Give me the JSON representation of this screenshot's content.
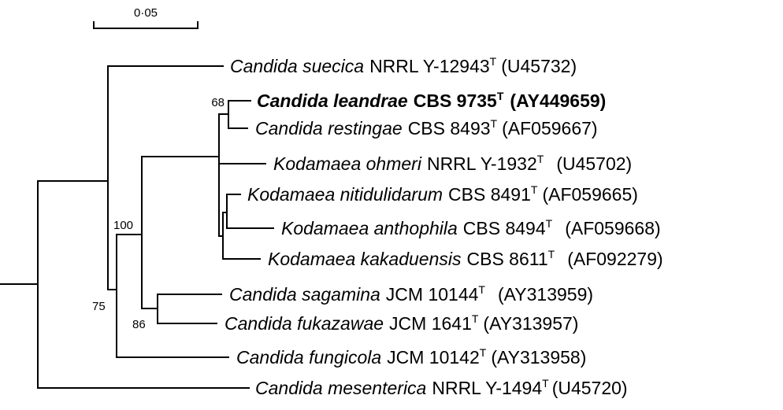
{
  "scale_bar": {
    "label": "0·05",
    "value": 0.05
  },
  "taxa": [
    {
      "id": "suecica",
      "genus_species": "Candida suecica",
      "strain": "NRRL Y-12943",
      "type_mark": "T",
      "accession": "(U45732)",
      "bold": false
    },
    {
      "id": "leandrae",
      "genus_species": "Candida leandrae",
      "strain": "CBS 9735",
      "type_mark": "T",
      "accession": "(AY449659)",
      "bold": true
    },
    {
      "id": "restingae",
      "genus_species": "Candida restingae",
      "strain": "CBS 8493",
      "type_mark": "T",
      "accession": "(AF059667)",
      "bold": false
    },
    {
      "id": "ohmeri",
      "genus_species": "Kodamaea ohmeri",
      "strain": "NRRL Y-1932",
      "type_mark": "T",
      "accession": "(U45702)",
      "bold": false
    },
    {
      "id": "nitidulidarum",
      "genus_species": "Kodamaea nitidulidarum",
      "strain": "CBS 8491",
      "type_mark": "T",
      "accession": "(AF059665)",
      "bold": false
    },
    {
      "id": "anthophila",
      "genus_species": "Kodamaea anthophila",
      "strain": "CBS 8494",
      "type_mark": "T",
      "accession": "(AF059668)",
      "bold": false
    },
    {
      "id": "kakaduensis",
      "genus_species": "Kodamaea kakaduensis",
      "strain": "CBS 8611",
      "type_mark": "T",
      "accession": "(AF092279)",
      "bold": false
    },
    {
      "id": "sagamina",
      "genus_species": "Candida sagamina",
      "strain": "JCM 10144",
      "type_mark": "T",
      "accession": "(AY313959)",
      "bold": false
    },
    {
      "id": "fukazawae",
      "genus_species": "Candida fukazawae",
      "strain": "JCM 1641",
      "type_mark": "T",
      "accession": "(AY313957)",
      "bold": false
    },
    {
      "id": "fungicola",
      "genus_species": "Candida fungicola",
      "strain": "JCM 10142",
      "type_mark": "T",
      "accession": "(AY313958)",
      "bold": false
    },
    {
      "id": "mesenterica",
      "genus_species": "Candida mesenterica",
      "strain": "NRRL Y-1494",
      "type_mark": "T",
      "accession": "(U45720)",
      "bold": false
    }
  ],
  "bootstrap": [
    {
      "clade": "leandrae-restingae",
      "value": "68"
    },
    {
      "clade": "kodamaea-candida-core",
      "value": "100"
    },
    {
      "clade": "sagamina-fukazawae",
      "value": "86"
    },
    {
      "clade": "all-except-mesenterica",
      "value": "75"
    }
  ]
}
